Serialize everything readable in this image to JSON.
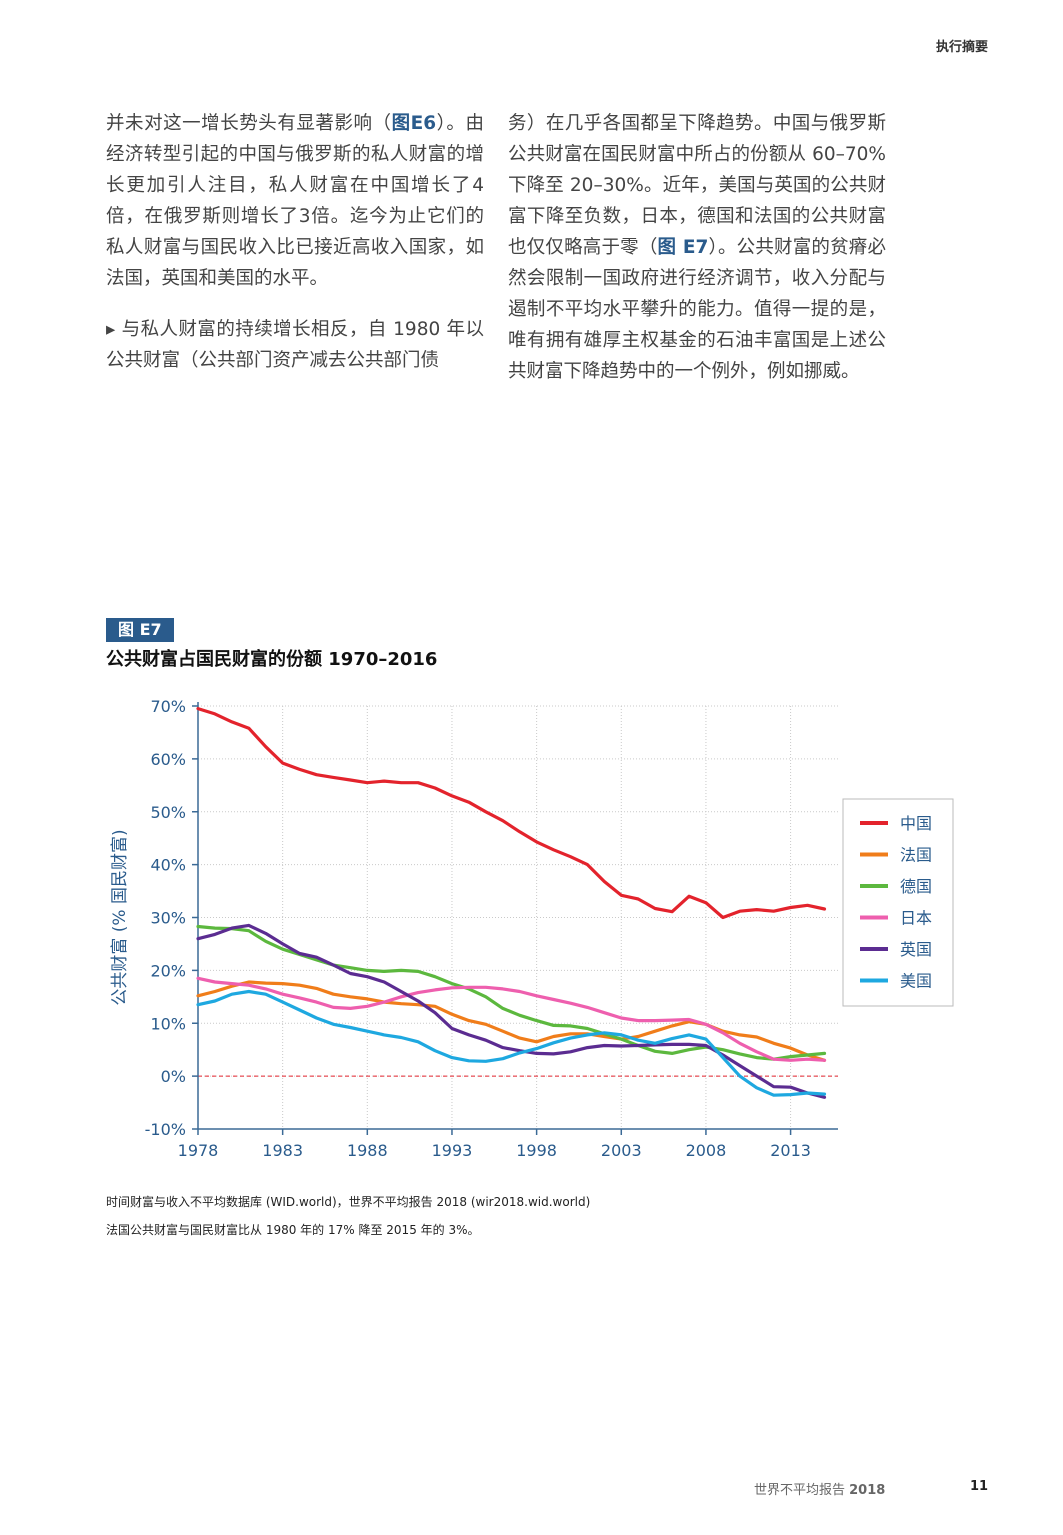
{
  "header": {
    "section_label": "执行摘要"
  },
  "left_column": {
    "para1_pre": "并未对这一增长势头有显著影响（",
    "para1_ref": "图E6",
    "para1_post": "）。由经济转型引起的中国与俄罗斯的私人财富的增长更加引人注目，私人财富在中国增长了4倍，在俄罗斯则增长了3倍。迄今为止它们的私人财富与国民收入比已接近高收入国家，如法国，英国和美国的水平。",
    "bullet": "▸",
    "para2": "与私人财富的持续增长相反，自 1980 年以公共财富（公共部门资产减去公共部门债"
  },
  "right_column": {
    "para_pre": "务）在几乎各国都呈下降趋势。中国与俄罗斯公共财富在国民财富中所占的份额从 60–70% 下降至 20–30%。近年，美国与英国的公共财富下降至负数，日本，德国和法国的公共财富也仅仅略高于零（",
    "para_ref": "图 E7",
    "para_post": "）。公共财富的贫瘠必然会限制一国政府进行经济调节，收入分配与遏制不平均水平攀升的能力。值得一提的是，唯有拥有雄厚主权基金的石油丰富国是上述公共财富下降趋势中的一个例外，例如挪威。"
  },
  "figure": {
    "tag": "图 E7",
    "title": "公共财富占国民财富的份额 1970–2016"
  },
  "chart_data": {
    "type": "line",
    "title": "公共财富占国民财富的份额 1970–2016",
    "xlabel": "",
    "ylabel": "公共财富 (% 国民财富)",
    "x_ticks": [
      "1978",
      "1983",
      "1988",
      "1993",
      "1998",
      "2003",
      "2008",
      "2013"
    ],
    "y_ticks": [
      "-10%",
      "0%",
      "10%",
      "20%",
      "30%",
      "40%",
      "50%",
      "60%",
      "70%"
    ],
    "xlim": [
      1978,
      2015.8
    ],
    "ylim": [
      -10,
      70
    ],
    "grid": true,
    "legend_position": "right",
    "x": [
      1978,
      1979,
      1980,
      1981,
      1982,
      1983,
      1984,
      1985,
      1986,
      1987,
      1988,
      1989,
      1990,
      1991,
      1992,
      1993,
      1994,
      1995,
      1996,
      1997,
      1998,
      1999,
      2000,
      2001,
      2002,
      2003,
      2004,
      2005,
      2006,
      2007,
      2008,
      2009,
      2010,
      2011,
      2012,
      2013,
      2014,
      2015
    ],
    "series": [
      {
        "name": "中国",
        "color": "#e3232c",
        "values": [
          69.5,
          68.5,
          67,
          65.8,
          62.3,
          59.2,
          58,
          57,
          56.5,
          56,
          55.5,
          55.8,
          55.5,
          55.5,
          54.5,
          53,
          51.8,
          50,
          48.3,
          46.2,
          44.3,
          42.8,
          41.5,
          40,
          36.8,
          34.2,
          33.5,
          31.7,
          31.1,
          34,
          32.8,
          30,
          31.2,
          31.5,
          31.2,
          31.9,
          32.3,
          31.6
        ]
      },
      {
        "name": "法国",
        "color": "#f07d1a",
        "values": [
          15.2,
          16,
          17,
          17.8,
          17.6,
          17.5,
          17.2,
          16.6,
          15.5,
          15,
          14.6,
          14,
          13.7,
          13.5,
          13.2,
          11.7,
          10.5,
          9.8,
          8.5,
          7.2,
          6.5,
          7.5,
          8,
          8,
          7.5,
          7,
          7.5,
          8.5,
          9.5,
          10.3,
          9.8,
          8.5,
          7.8,
          7.4,
          6.2,
          5.3,
          4,
          3
        ]
      },
      {
        "name": "德国",
        "color": "#5cb83e",
        "values": [
          28.3,
          28,
          27.9,
          27.5,
          25.5,
          24,
          23,
          22,
          21,
          20.5,
          20,
          19.8,
          20,
          19.8,
          18.8,
          17.5,
          16.5,
          15,
          12.8,
          11.5,
          10.5,
          9.6,
          9.5,
          9,
          8,
          7,
          5.8,
          4.7,
          4.3,
          5,
          5.5,
          5,
          4.2,
          3.5,
          3.2,
          3.7,
          4,
          4.3
        ]
      },
      {
        "name": "日本",
        "color": "#ee5fae",
        "values": [
          18.5,
          17.8,
          17.5,
          17.2,
          16.5,
          15.5,
          14.8,
          14,
          13,
          12.8,
          13.2,
          14,
          15,
          15.8,
          16.3,
          16.7,
          16.8,
          16.8,
          16.5,
          16,
          15.2,
          14.5,
          13.8,
          13,
          12,
          11,
          10.5,
          10.5,
          10.6,
          10.7,
          9.8,
          8.2,
          6.2,
          4.6,
          3.2,
          3,
          3.2,
          3
        ]
      },
      {
        "name": "英国",
        "color": "#5b2c91",
        "values": [
          26,
          26.8,
          28,
          28.5,
          27,
          25,
          23.2,
          22.5,
          21,
          19.4,
          18.8,
          17.8,
          16,
          14.2,
          12,
          9,
          7.8,
          6.8,
          5.4,
          4.8,
          4.3,
          4.2,
          4.6,
          5.4,
          5.8,
          5.7,
          5.8,
          5.9,
          6,
          6,
          5.8,
          4,
          2,
          0,
          -2,
          -2.1,
          -3.2,
          -4
        ]
      },
      {
        "name": "美国",
        "color": "#1ea8e0",
        "values": [
          13.5,
          14.2,
          15.5,
          16,
          15.5,
          14,
          12.5,
          11,
          9.8,
          9.2,
          8.5,
          7.8,
          7.3,
          6.5,
          4.8,
          3.5,
          2.9,
          2.8,
          3.3,
          4.4,
          5.2,
          6.3,
          7.2,
          7.8,
          8.2,
          7.8,
          6.8,
          6.2,
          7.1,
          7.8,
          7,
          3.5,
          0,
          -2.2,
          -3.6,
          -3.5,
          -3.2,
          -3.4
        ]
      }
    ]
  },
  "source": {
    "line1": "时间财富与收入不平均数据库 (WID.world)，世界不平均报告 2018 (wir2018.wid.world)",
    "line2": "法国公共财富与国民财富比从 1980 年的 17% 降至 2015 年的 3%。"
  },
  "footer": {
    "text_pre": "世界不平均报告 ",
    "text_year": "2018",
    "page_number": "11"
  }
}
